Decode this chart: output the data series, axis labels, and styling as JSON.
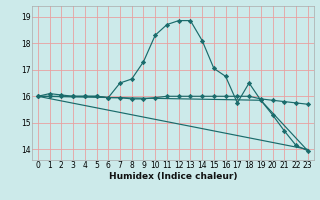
{
  "xlabel": "Humidex (Indice chaleur)",
  "background_color": "#cceaea",
  "grid_color": "#e8a0a0",
  "line_color": "#1a6b6b",
  "xlim": [
    -0.5,
    23.5
  ],
  "ylim": [
    13.6,
    19.4
  ],
  "yticks": [
    14,
    15,
    16,
    17,
    18,
    19
  ],
  "xticks": [
    0,
    1,
    2,
    3,
    4,
    5,
    6,
    7,
    8,
    9,
    10,
    11,
    12,
    13,
    14,
    15,
    16,
    17,
    18,
    19,
    20,
    21,
    22,
    23
  ],
  "curve1_x": [
    0,
    1,
    2,
    3,
    4,
    5,
    6,
    7,
    8,
    9,
    10,
    11,
    12,
    13,
    14,
    15,
    16,
    17,
    18,
    19,
    20,
    21,
    22,
    23
  ],
  "curve1_y": [
    16.0,
    16.1,
    16.05,
    16.0,
    16.0,
    16.0,
    15.95,
    16.5,
    16.65,
    17.3,
    18.3,
    18.7,
    18.85,
    18.85,
    18.1,
    17.05,
    16.75,
    15.75,
    16.5,
    15.85,
    15.3,
    14.7,
    14.15,
    13.95
  ],
  "curve2_x": [
    0,
    1,
    2,
    3,
    4,
    5,
    6,
    7,
    8,
    9,
    10,
    11,
    12,
    13,
    14,
    15,
    16,
    17,
    18,
    19,
    20,
    21,
    22,
    23
  ],
  "curve2_y": [
    16.0,
    16.0,
    16.0,
    16.0,
    16.0,
    16.0,
    15.95,
    15.95,
    15.9,
    15.9,
    15.95,
    16.0,
    16.0,
    16.0,
    16.0,
    16.0,
    16.0,
    16.0,
    16.0,
    15.9,
    15.85,
    15.8,
    15.75,
    15.7
  ],
  "curve3_x": [
    0,
    23
  ],
  "curve3_y": [
    16.0,
    14.0
  ],
  "curve4_x": [
    0,
    19,
    23
  ],
  "curve4_y": [
    16.0,
    15.85,
    13.95
  ]
}
